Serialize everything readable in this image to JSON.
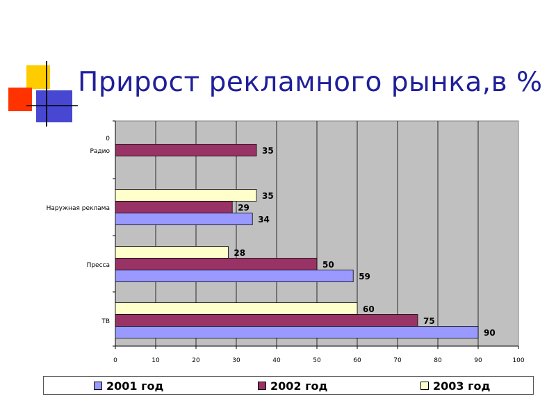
{
  "title": "Прирост рекламного рынка,в %",
  "colors": {
    "title": "#1f1f9a",
    "plot_bg": "#c0c0c0",
    "deco_yellow": "#ffcc00",
    "deco_red": "#ff3300",
    "deco_blue": "#3333cc"
  },
  "chart_data": {
    "type": "bar",
    "orientation": "horizontal",
    "categories": [
      "0",
      "Радио",
      "Наружная реклама",
      "Пресса",
      "ТВ"
    ],
    "series": [
      {
        "name": "2001 год",
        "color": "#9999ff",
        "values": [
          null,
          null,
          34,
          59,
          90
        ]
      },
      {
        "name": "2002 год",
        "color": "#993366",
        "values": [
          null,
          35,
          29,
          50,
          75
        ]
      },
      {
        "name": "2003 год",
        "color": "#ffffcc",
        "values": [
          null,
          null,
          35,
          28,
          60
        ]
      }
    ],
    "x_ticks": [
      0,
      10,
      20,
      30,
      40,
      50,
      60,
      70,
      80,
      90,
      100
    ],
    "xlim": [
      0,
      100
    ],
    "xlabel": "",
    "ylabel": "",
    "grid": true,
    "legend_position": "bottom"
  }
}
